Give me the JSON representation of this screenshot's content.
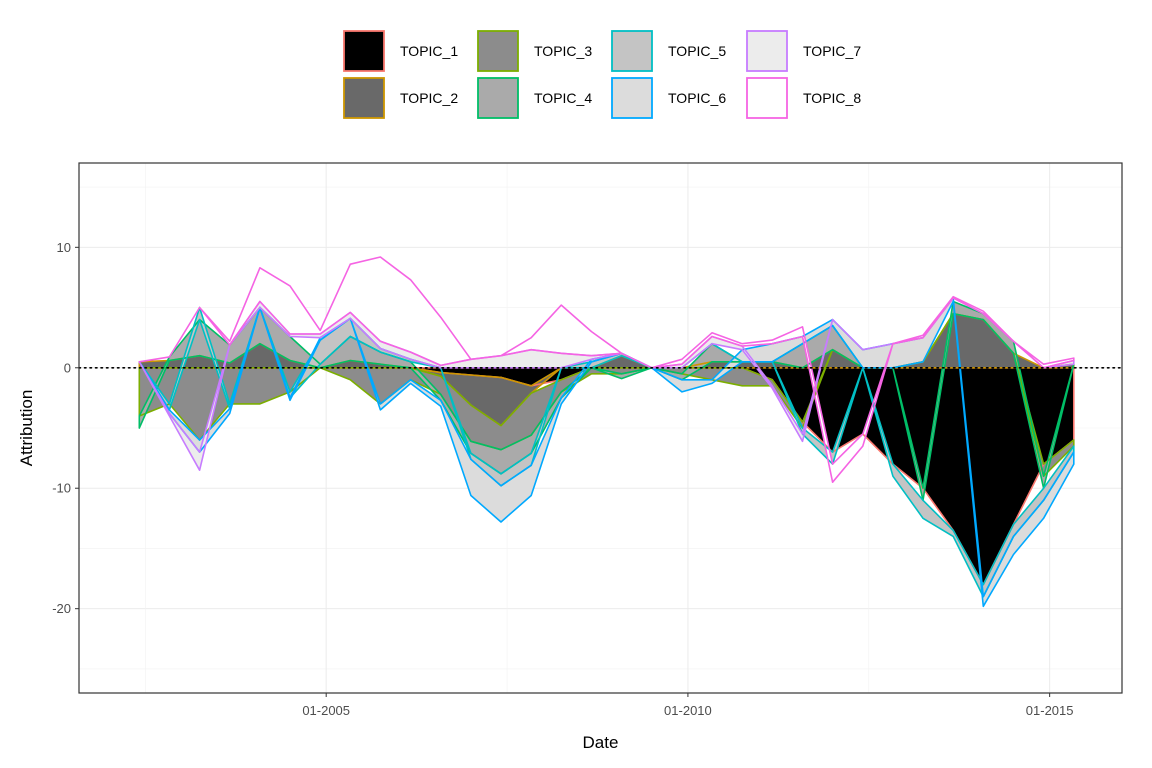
{
  "chart_data": {
    "type": "area",
    "stacked": "diverging",
    "xlabel": "Date",
    "ylabel": "Attribution",
    "x_ticks": [
      "01-2005",
      "01-2010",
      "01-2015"
    ],
    "y_ticks": [
      -20,
      -10,
      0,
      10
    ],
    "xlim": [
      "2000-08",
      "2015-01"
    ],
    "ylim": [
      -27,
      17
    ],
    "grid": true,
    "zero_line": "dotted",
    "legend_position": "top",
    "x": [
      "2001-06",
      "2001-11",
      "2002-04",
      "2002-09",
      "2003-02",
      "2003-07",
      "2003-12",
      "2004-05",
      "2004-10",
      "2005-03",
      "2005-08",
      "2006-01",
      "2006-06",
      "2006-11",
      "2007-04",
      "2007-09",
      "2008-02",
      "2008-07",
      "2008-12",
      "2009-05",
      "2009-10",
      "2010-03",
      "2010-08",
      "2011-01",
      "2011-06",
      "2011-11",
      "2012-04",
      "2012-09",
      "2013-02",
      "2013-07",
      "2013-12",
      "2014-05"
    ],
    "series": [
      {
        "name": "TOPIC_1",
        "fill": "#000000",
        "stroke": "#F8766D",
        "values": [
          0,
          0,
          0,
          0,
          0,
          0,
          0,
          0,
          0,
          0,
          -0.4,
          -0.6,
          -0.8,
          -1.5,
          -1,
          0,
          0,
          0,
          0,
          0,
          0,
          -1,
          -4.5,
          -7,
          -5.5,
          -8,
          -10,
          -13.5,
          -18,
          -13,
          -8,
          -6
        ]
      },
      {
        "name": "TOPIC_2",
        "fill": "#696969",
        "stroke": "#CD9600",
        "values": [
          0.5,
          0.6,
          1,
          0.4,
          2,
          0.6,
          0,
          0.6,
          0.3,
          0,
          -0.3,
          -2.5,
          -4,
          -0.6,
          0,
          0,
          1,
          0,
          0,
          0.5,
          0.5,
          0.5,
          0,
          1.5,
          0,
          0,
          0.5,
          4.5,
          4,
          1.2,
          0,
          0.3
        ]
      },
      {
        "name": "TOPIC_3",
        "fill": "#8c8c8c",
        "stroke": "#7CAE00",
        "values": [
          -4,
          -3,
          -6,
          -3,
          -3,
          -2,
          0,
          -1,
          -3,
          -1,
          -1.5,
          -3,
          -2,
          -3.5,
          -1,
          -0.5,
          -0.5,
          0,
          -0.5,
          -1,
          -1.5,
          -0.5,
          -0.5,
          0,
          0,
          0,
          0,
          0,
          0,
          0,
          -1,
          -0.5
        ]
      },
      {
        "name": "TOPIC_4",
        "fill": "#aaaaaa",
        "stroke": "#00BE67",
        "values": [
          -1,
          0.3,
          3,
          1.5,
          3,
          2,
          0.3,
          2,
          1,
          0.5,
          -0.5,
          -1,
          -2,
          -1.5,
          -0.5,
          0,
          -0.4,
          0,
          -0.5,
          1.5,
          0,
          0,
          2,
          2,
          0,
          0,
          -1,
          1,
          0.5,
          1,
          -1,
          0
        ]
      },
      {
        "name": "TOPIC_5",
        "fill": "#c4c4c4",
        "stroke": "#00BFC4",
        "values": [
          0,
          -0.5,
          1,
          -0.4,
          0,
          -0.5,
          2,
          1.5,
          0.3,
          0.2,
          0,
          -0.5,
          -1,
          -1,
          0,
          0.5,
          0.2,
          0,
          0,
          0,
          0,
          0,
          -0.5,
          -1,
          0,
          -1,
          -1.5,
          -0.5,
          -1,
          -1,
          -1,
          -0.5
        ]
      },
      {
        "name": "TOPIC_6",
        "fill": "#dcdcdc",
        "stroke": "#00A9FF",
        "values": [
          0,
          -0.3,
          -1,
          -0.4,
          0,
          -0.2,
          0.2,
          0,
          -0.5,
          -0.3,
          -0.5,
          -3,
          -3,
          -2.5,
          -0.5,
          0.2,
          0,
          0,
          -1,
          -0.3,
          1,
          1.5,
          0.6,
          0.5,
          1.5,
          2,
          2,
          0.3,
          -0.8,
          -1.5,
          -1.5,
          -1
        ]
      },
      {
        "name": "TOPIC_7",
        "fill": "#ececec",
        "stroke": "#C77CFF",
        "values": [
          0,
          -0.2,
          -1.5,
          0,
          0.5,
          0.2,
          0.3,
          0.5,
          0.6,
          0.6,
          0.2,
          0.7,
          1,
          1.5,
          1.2,
          0.3,
          0,
          0,
          0.3,
          0.6,
          0.3,
          -0.2,
          -0.6,
          0,
          0,
          0,
          0,
          0,
          0,
          0,
          0,
          0.3
        ]
      },
      {
        "name": "TOPIC_8",
        "fill": "#ffffff",
        "stroke": "#F564E3",
        "values": [
          0,
          0,
          0,
          0.3,
          2.8,
          4,
          0.3,
          4,
          7,
          6,
          4,
          0,
          0,
          1,
          4,
          2,
          0,
          0,
          0.4,
          0.3,
          0.2,
          0.3,
          0.8,
          -1.5,
          -1,
          0,
          0.2,
          0.1,
          0.2,
          0,
          0.3,
          0.2
        ]
      }
    ]
  }
}
